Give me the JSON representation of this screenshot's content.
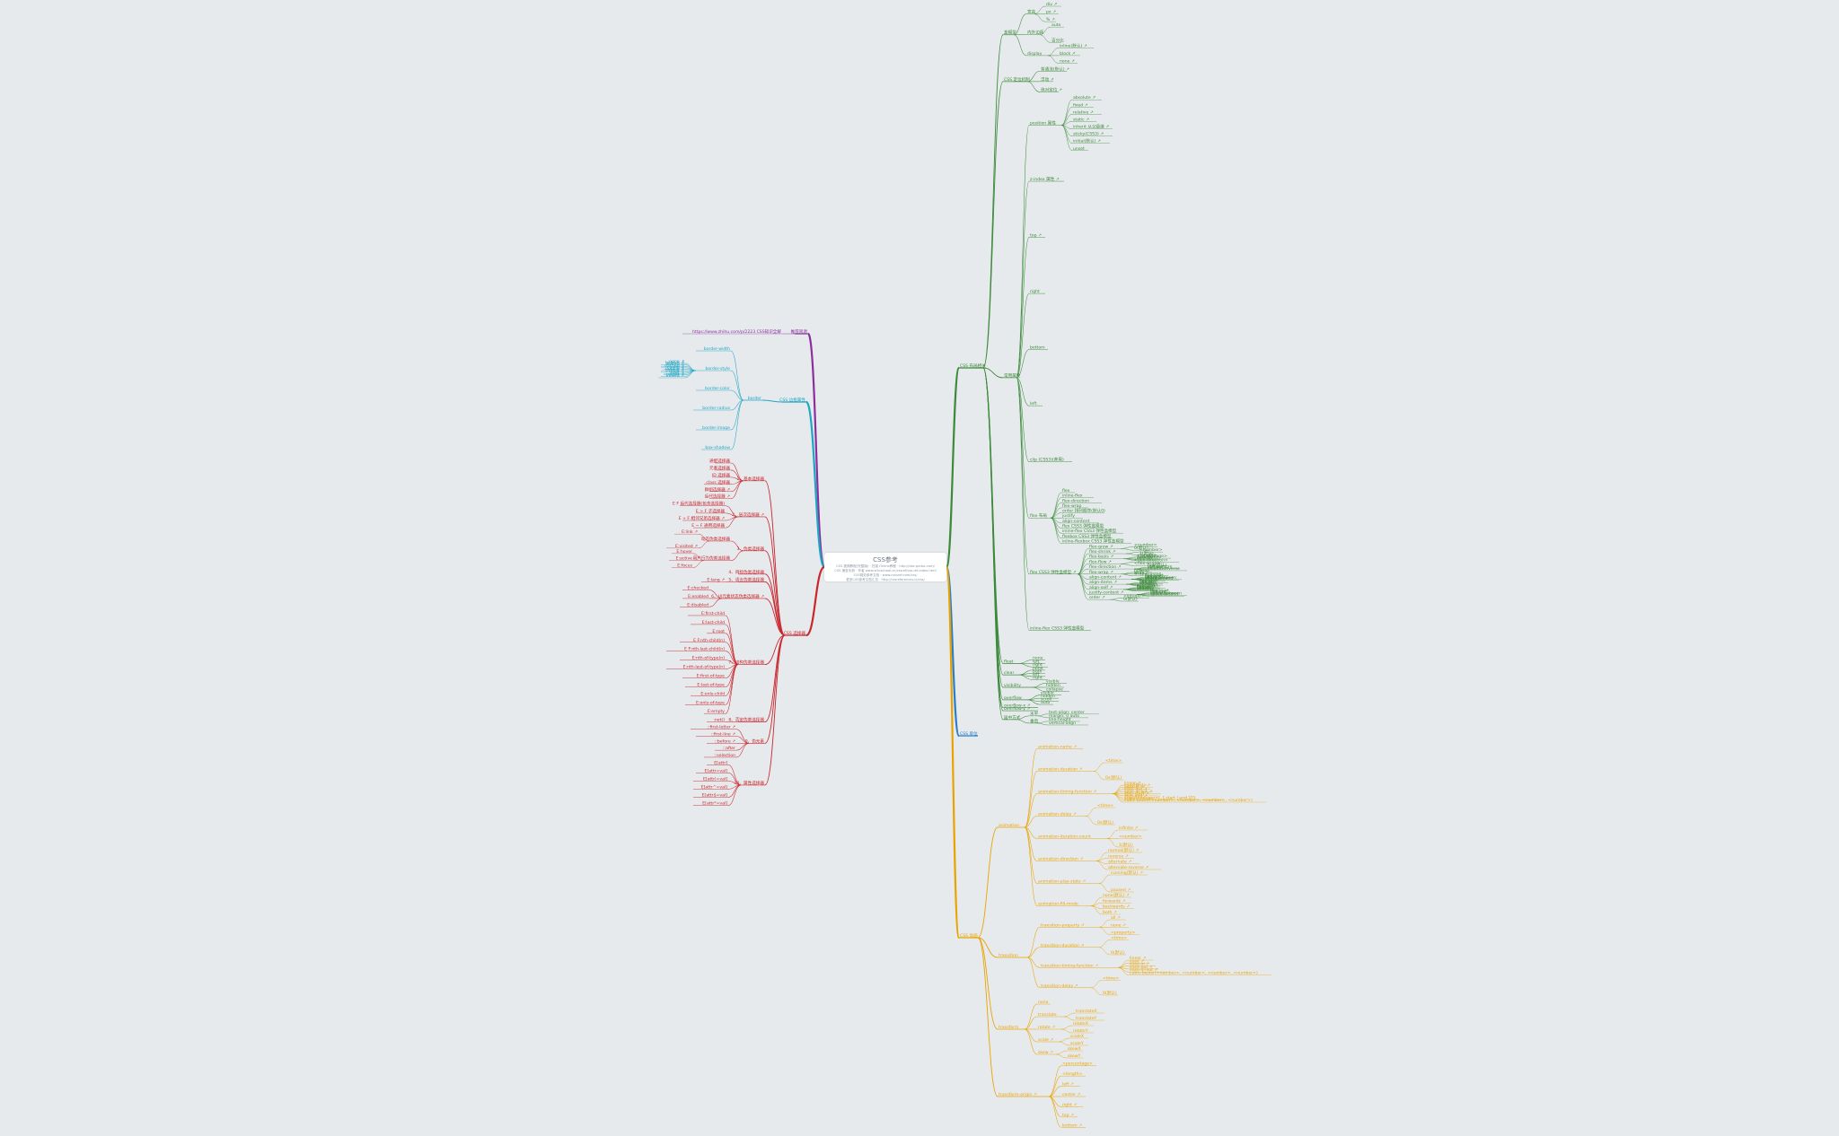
{
  "colors": {
    "background": "#e7eaed",
    "green": "#3c8a3a",
    "purple": "#8a2f9e",
    "cyan": "#1fa6c4",
    "red": "#c8262d",
    "blue": "#2a7ec9",
    "orange": "#e9a300"
  },
  "root": {
    "title": "CSS参考",
    "lines": [
      "CSS 视频教程(完整版) · 扫描 Online教程 · http://doc.gxdoc.com/",
      "CSS 速查手册 · 作者 www.w3cschool.cn/cssref/css-ref-index.html",
      "CSS规范参考文档 · www.csssref.com/css/",
      "更多CSS参考文档汇总 · http://cssreferences.io/css/"
    ]
  },
  "branches": {
    "layout": {
      "label": "CSS 布局相关",
      "groups": [
        {
          "label": "盒模型",
          "children": [
            {
              "label": "宽高",
              "children": [
                "div ↗",
                "px ↗",
                "% ↗"
              ]
            },
            {
              "label": "内外边距",
              "children": [
                "auto",
                "百分比"
              ]
            },
            {
              "label": "display",
              "children": [
                "inline(默认) ↗",
                "block ↗",
                "none ↗"
              ]
            }
          ]
        },
        {
          "label": "CSS 定位机制",
          "children": [
            {
              "label": "普通流(默认) ↗",
              "children": []
            },
            {
              "label": "浮动 ↗",
              "children": []
            },
            {
              "label": "绝对定位 ↗",
              "children": []
            }
          ]
        },
        {
          "label": "常用属性",
          "children": [
            {
              "label": "position 属性",
              "children": [
                "absolute ↗",
                "fixed ↗",
                "relative ↗",
                "static ↗",
                "inherit 从父级继 ↗",
                "sticky(CSS3) ↗",
                "initial(默认) ↗",
                "unset"
              ]
            },
            {
              "label": "z-index 属性 ↗",
              "children": []
            },
            {
              "label": "top ↗",
              "children": []
            },
            {
              "label": "right",
              "children": []
            },
            {
              "label": "bottom",
              "children": []
            },
            {
              "label": "left",
              "children": []
            },
            {
              "label": "clip (CSS3)(弃用)",
              "children": []
            },
            {
              "label": "flex 布局",
              "children": [
                "flex",
                "inline-flex",
                "flex-direction",
                "flex-wrap",
                "order 排列顺序(默认0)",
                "justify",
                "align-content",
                "flex CSS3 弹性盒模型",
                "inline-flex CSS3 弹性盒模型",
                "flexbox CSS3 弹性盒模型",
                "inline-flexbox CSS3 弹性盒模型"
              ]
            },
            {
              "label": "flex CSS3 弹性盒模型 ↗",
              "children": [
                "flex-grow ↗ · <number> · 0(默认)",
                "flex-shrink ↗ · <number> · 1(默认)",
                "flex-basis ↗ · <length> · <percentage> · auto(默认) · content",
                "flex-flow ↗ · <flex-direction> · <flex-wrap>",
                "flex-direction ↗ · row(默认) · row-reverse · column · column-reverse",
                "flex-wrap ↗ · nowrap · wrap · wrap-reverse",
                "align-content ↗ · flex-start · flex-end · center · space-between · space-around · stretch",
                "align-items ↗ · flex-start · flex-end · center · baseline · stretch",
                "align-self ↗ · auto(默认) · flex-start · flex-end · center · baseline · stretch",
                "justify-content ↗ · flex-start · flex-end · center · space-between · space-around",
                "order ↗ · <integer> · 0(默认)"
              ]
            },
            {
              "label": "inline-flex CSS3 弹性盒模型",
              "children": []
            }
          ]
        },
        {
          "label": "float",
          "children": [
            "none",
            "left",
            "right"
          ]
        },
        {
          "label": "clear",
          "children": [
            "none",
            "both",
            "left",
            "right"
          ]
        },
        {
          "label": "visibility",
          "children": [
            "visible",
            "hidden",
            "collapse"
          ]
        },
        {
          "label": "overflow",
          "children": [
            "visible",
            "hidden",
            "scroll",
            "auto"
          ]
        },
        {
          "label": "overflow-x ↗",
          "children": []
        },
        {
          "label": "overflow-y ↗",
          "children": []
        },
        {
          "label": "居中方式",
          "children": [
            {
              "label": "水平",
              "children": [
                "text-align: center",
                "margin: 0 auto"
              ]
            },
            {
              "label": "垂直",
              "children": [
                "line-height",
                "vertical-align"
              ]
            }
          ]
        }
      ]
    },
    "recommend": {
      "label": "推荐资源",
      "children": [
        "https://www.zhihu.com/p/2223 CSS知识全解"
      ]
    },
    "border": {
      "label": "CSS 边框属性",
      "groups": [
        {
          "label": "border",
          "children": [
            {
              "label": "border-width",
              "children": []
            },
            {
              "label": "border-style",
              "children": [
                "none ↗",
                "hidden ↗",
                "dotted ↗",
                "dashed ↗",
                "solid ↗",
                "double ↗",
                "groove ↗",
                "ridge ↗",
                "inset ↗",
                "outset ↗",
                "inherit ↗"
              ]
            },
            {
              "label": "border-color",
              "children": []
            },
            {
              "label": "border-radius",
              "children": []
            },
            {
              "label": "border-image",
              "children": []
            },
            {
              "label": "box-shadow",
              "children": []
            }
          ]
        }
      ]
    },
    "selector": {
      "label": "CSS 选择器",
      "groups": [
        {
          "label": "1、基本选择器",
          "children": [
            "通配选择器",
            "元素选择器",
            "ID 选择器",
            "class 选择器",
            "群组选择器 ↗",
            "后代选择器 ↗"
          ]
        },
        {
          "label": "2、层次选择器 ↗",
          "children": [
            "E F 后代选择器(包含选择器)",
            "E > F 子选择器",
            "E + F 相邻兄弟选择器 ↗",
            "E ~ F 通用选择器"
          ]
        },
        {
          "label": "3、伪类选择器",
          "children": [
            {
              "label": "动态伪类选择器",
              "children": [
                "E:link ↗",
                "E:visited ↗"
              ]
            },
            {
              "label": "用户行为伪类选择器",
              "children": [
                "E:hover",
                "E:active",
                "E:focus"
              ]
            }
          ]
        },
        {
          "label": "4、目标伪类选择器",
          "children": []
        },
        {
          "label": "5、语言伪类选择器",
          "children": [
            "E:lang ↗"
          ]
        },
        {
          "label": "6、UI元素状态伪类选择器 ↗",
          "children": [
            "E:checked",
            "E:enabled",
            "E:disabled"
          ]
        },
        {
          "label": "7、结构伪类选择器",
          "children": [
            "E:first-child",
            "E:last-child",
            "E:root",
            "E F:nth-child(n)",
            "E F:nth-last-child(n)",
            "E:nth-of-type(n)",
            "E:nth-last-of-type(n)",
            "E:first-of-type",
            "E:last-of-type",
            "E:only-child",
            "E:only-of-type",
            "E:empty"
          ]
        },
        {
          "label": "8、否定伪类选择器",
          "children": [
            ":not()"
          ]
        },
        {
          "label": "9、伪元素",
          "children": [
            "::first-letter ↗",
            "::first-line ↗",
            "::before ↗",
            "::after",
            "::selection"
          ]
        },
        {
          "label": "10、属性选择器",
          "children": [
            "E[attr]",
            "E[attr=val]",
            "E[attr|=val]",
            "E[attr^=val]",
            "E[attr$=val]",
            "E[attr*=val]"
          ]
        }
      ]
    },
    "units": {
      "label": "CSS 单位"
    },
    "anim": {
      "label": "CSS 动画",
      "groups": [
        {
          "label": "animation",
          "children": [
            "animation-name ↗",
            "animation-duration ↗ · <time> · 0s(默认)",
            "animation-timing-function ↗ · linear ↗ · ease(默认) ↗ · ease-in ↗ · ease-out ↗ · ease-in-out ↗ · step-start ↗ · step-end ↗ · steps(<integer>[, [ start | end ]]?) · cubic-bezier(<number>, <number>, <number>, <number>)",
            "animation-delay ↗ · <time> · 0s(默认)",
            "animation-iteration-count · infinite ↗ · <number> · 1(默认)",
            "animation-direction ↗ · normal(默认) ↗ · reverse ↗ · alternate ↗ · alternate-reverse ↗",
            "animation-play-state ↗ · running(默认) ↗ · paused ↗",
            "animation-fill-mode · none(默认) ↗ · forwards ↗ · backwards ↗ · both ↗"
          ]
        },
        {
          "label": "transition",
          "children": [
            "transition-property ↗ · all ↗ · none ↗ · <property>",
            "transition-duration ↗ · <time> · 0(默认)",
            "transition-timing-function ↗ · linear ↗ · ease ↗ · ease-in ↗ · ease-out ↗ · ease-in-out ↗ · cubic-bezier(<number>, <number>, <number>, <number>)",
            "transition-delay ↗ · <time> · 0(默认)"
          ]
        },
        {
          "label": "transform",
          "children": [
            "none",
            "translate · translateX · translateY",
            "rotate ↗ · rotateX · rotateY",
            "scale ↗ · scaleX · scaleY",
            "skew ↗ · skewX · skewY"
          ]
        },
        {
          "label": "transform-origin ↗",
          "children": [
            "<percentage>",
            "<length>",
            "left ↗",
            "center ↗",
            "right ↗",
            "top ↗",
            "bottom ↗"
          ]
        }
      ]
    }
  }
}
